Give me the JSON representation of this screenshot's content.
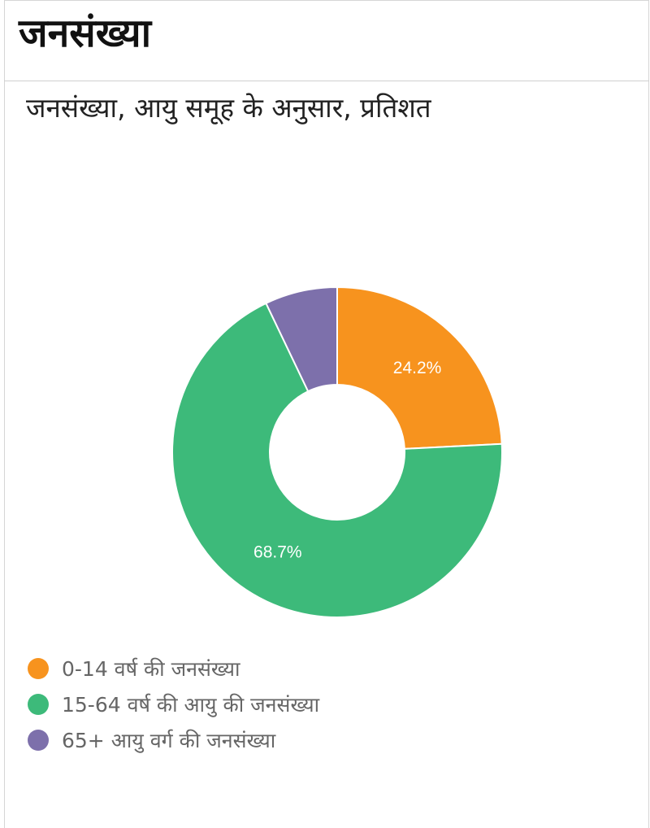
{
  "page": {
    "heading": "जनसंख्या"
  },
  "chart_data": {
    "type": "pie",
    "variant": "donut",
    "title": "जनसंख्या, आयु समूह के अनुसार, प्रतिशत",
    "legend_position": "bottom-left",
    "categories": [
      "0-14 वर्ष की जनसंख्या",
      "15-64 वर्ष की आयु की जनसंख्या",
      "65+ आयु वर्ग की जनसंख्या"
    ],
    "values": [
      24.2,
      68.7,
      7.1
    ],
    "data_labels": [
      "24.2%",
      "68.7%",
      ""
    ],
    "colors": [
      "#f7931e",
      "#3dba7a",
      "#7d70ab"
    ]
  }
}
